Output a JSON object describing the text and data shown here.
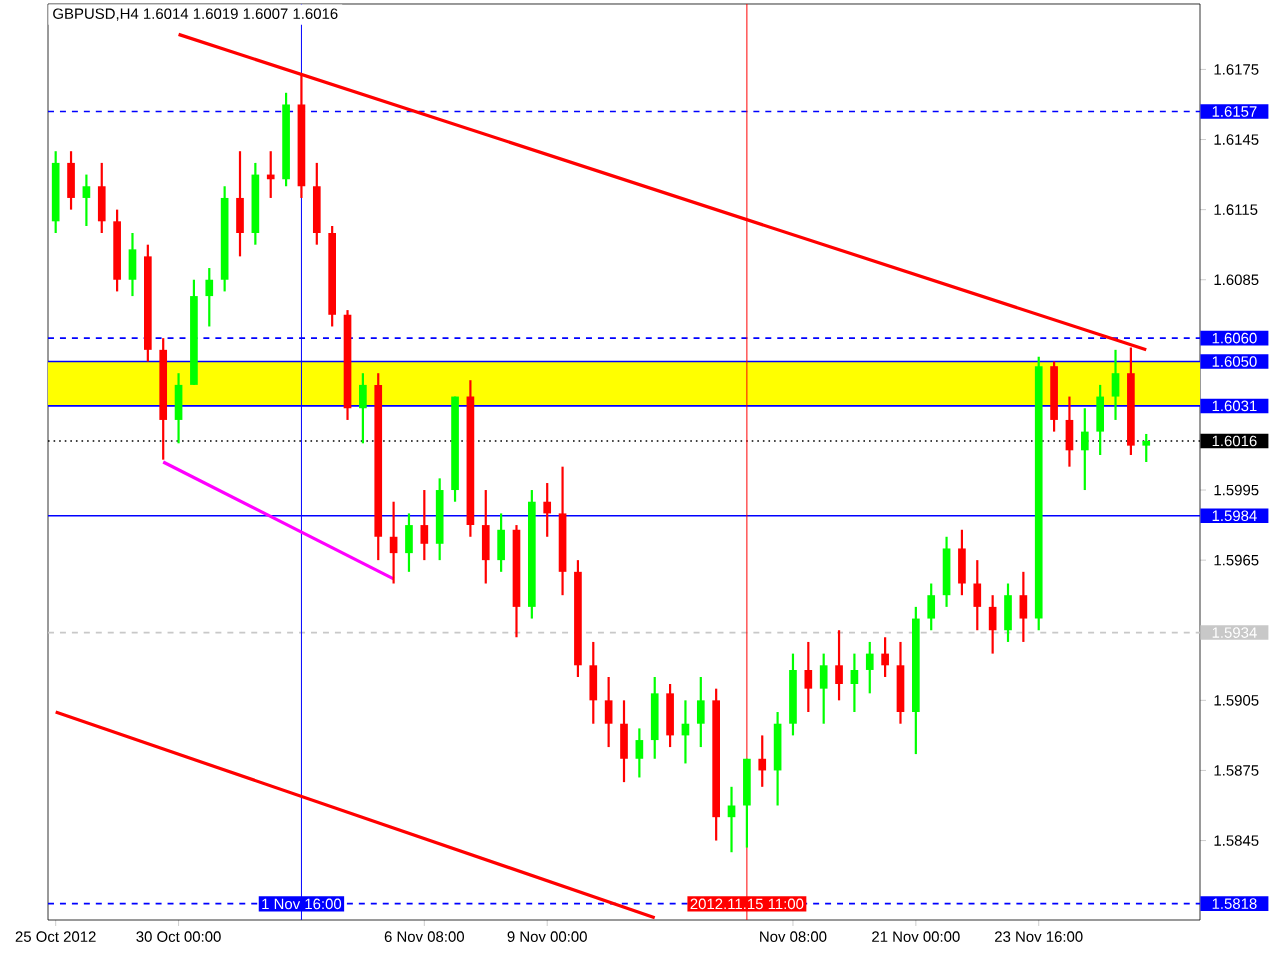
{
  "chart_data": {
    "type": "candlestick",
    "title": "GBPUSD,H4  1.6014 1.6019 1.6007 1.6016",
    "categories": [
      "25 Oct 2012",
      null,
      null,
      null,
      null,
      null,
      null,
      null,
      "30 Oct 00:00",
      null,
      null,
      null,
      null,
      null,
      null,
      null,
      "1 Nov 16:00",
      null,
      null,
      null,
      null,
      null,
      null,
      null,
      "6 Nov 08:00",
      null,
      null,
      null,
      null,
      null,
      null,
      null,
      "9 Nov 00:00",
      null,
      null,
      null,
      null,
      null,
      null,
      null,
      null,
      null,
      null,
      null,
      null,
      "2012.11.15 11:00",
      null,
      null,
      "Nov 08:00",
      null,
      null,
      null,
      null,
      null,
      null,
      null,
      "21 Nov 00:00",
      null,
      null,
      null,
      null,
      null,
      null,
      null,
      "23 Nov 16:00",
      null,
      null,
      null,
      null,
      null,
      null,
      null
    ],
    "ohlc": [
      [
        1.611,
        1.614,
        1.6105,
        1.6135
      ],
      [
        1.6135,
        1.614,
        1.6115,
        1.612
      ],
      [
        1.612,
        1.613,
        1.6108,
        1.6125
      ],
      [
        1.6125,
        1.6135,
        1.6105,
        1.611
      ],
      [
        1.611,
        1.6115,
        1.608,
        1.6085
      ],
      [
        1.6085,
        1.6105,
        1.6078,
        1.6098
      ],
      [
        1.6095,
        1.61,
        1.605,
        1.6055
      ],
      [
        1.6055,
        1.606,
        1.6008,
        1.6025
      ],
      [
        1.6025,
        1.6045,
        1.6015,
        1.604
      ],
      [
        1.604,
        1.6085,
        1.604,
        1.6078
      ],
      [
        1.6078,
        1.609,
        1.6065,
        1.6085
      ],
      [
        1.6085,
        1.6125,
        1.608,
        1.612
      ],
      [
        1.612,
        1.614,
        1.6095,
        1.6105
      ],
      [
        1.6105,
        1.6135,
        1.61,
        1.613
      ],
      [
        1.613,
        1.614,
        1.612,
        1.6128
      ],
      [
        1.6128,
        1.6165,
        1.6125,
        1.616
      ],
      [
        1.616,
        1.6173,
        1.612,
        1.6125
      ],
      [
        1.6125,
        1.6135,
        1.61,
        1.6105
      ],
      [
        1.6105,
        1.6108,
        1.6065,
        1.607
      ],
      [
        1.607,
        1.6072,
        1.6025,
        1.603
      ],
      [
        1.603,
        1.6045,
        1.6015,
        1.604
      ],
      [
        1.604,
        1.6045,
        1.5965,
        1.5975
      ],
      [
        1.5975,
        1.599,
        1.5955,
        1.5968
      ],
      [
        1.5968,
        1.5985,
        1.596,
        1.598
      ],
      [
        1.598,
        1.5995,
        1.5965,
        1.5972
      ],
      [
        1.5972,
        1.6,
        1.5965,
        1.5995
      ],
      [
        1.5995,
        1.6035,
        1.599,
        1.6035
      ],
      [
        1.6035,
        1.6042,
        1.5975,
        1.598
      ],
      [
        1.598,
        1.5995,
        1.5955,
        1.5965
      ],
      [
        1.5965,
        1.5985,
        1.596,
        1.5978
      ],
      [
        1.5978,
        1.598,
        1.5932,
        1.5945
      ],
      [
        1.5945,
        1.5995,
        1.594,
        1.599
      ],
      [
        1.599,
        1.5998,
        1.5975,
        1.5985
      ],
      [
        1.5985,
        1.6005,
        1.595,
        1.596
      ],
      [
        1.596,
        1.5965,
        1.5915,
        1.592
      ],
      [
        1.592,
        1.593,
        1.5895,
        1.5905
      ],
      [
        1.5905,
        1.5915,
        1.5885,
        1.5895
      ],
      [
        1.5895,
        1.5905,
        1.587,
        1.588
      ],
      [
        1.588,
        1.5893,
        1.5872,
        1.5888
      ],
      [
        1.5888,
        1.5915,
        1.588,
        1.5908
      ],
      [
        1.5908,
        1.5912,
        1.5885,
        1.589
      ],
      [
        1.589,
        1.5905,
        1.5878,
        1.5895
      ],
      [
        1.5895,
        1.5915,
        1.5885,
        1.5905
      ],
      [
        1.5905,
        1.591,
        1.5845,
        1.5855
      ],
      [
        1.5855,
        1.5868,
        1.584,
        1.586
      ],
      [
        1.586,
        1.588,
        1.5842,
        1.588
      ],
      [
        1.588,
        1.589,
        1.5868,
        1.5875
      ],
      [
        1.5875,
        1.59,
        1.586,
        1.5895
      ],
      [
        1.5895,
        1.5925,
        1.589,
        1.5918
      ],
      [
        1.5918,
        1.593,
        1.59,
        1.591
      ],
      [
        1.591,
        1.5925,
        1.5895,
        1.592
      ],
      [
        1.592,
        1.5935,
        1.5905,
        1.5912
      ],
      [
        1.5912,
        1.5925,
        1.59,
        1.5918
      ],
      [
        1.5918,
        1.593,
        1.5908,
        1.5925
      ],
      [
        1.5925,
        1.5932,
        1.5915,
        1.592
      ],
      [
        1.592,
        1.593,
        1.5895,
        1.59
      ],
      [
        1.59,
        1.5945,
        1.5882,
        1.594
      ],
      [
        1.594,
        1.5955,
        1.5935,
        1.595
      ],
      [
        1.595,
        1.5975,
        1.5945,
        1.597
      ],
      [
        1.597,
        1.5978,
        1.595,
        1.5955
      ],
      [
        1.5955,
        1.5965,
        1.5935,
        1.5945
      ],
      [
        1.5945,
        1.595,
        1.5925,
        1.5935
      ],
      [
        1.5935,
        1.5955,
        1.593,
        1.595
      ],
      [
        1.595,
        1.596,
        1.593,
        1.594
      ],
      [
        1.594,
        1.6052,
        1.5935,
        1.6048
      ],
      [
        1.6048,
        1.605,
        1.602,
        1.6025
      ],
      [
        1.6025,
        1.6035,
        1.6005,
        1.6012
      ],
      [
        1.6012,
        1.603,
        1.5995,
        1.602
      ],
      [
        1.602,
        1.604,
        1.601,
        1.6035
      ],
      [
        1.6035,
        1.6055,
        1.6025,
        1.6045
      ],
      [
        1.6045,
        1.6056,
        1.601,
        1.6014
      ],
      [
        1.6014,
        1.6019,
        1.6007,
        1.6016
      ]
    ],
    "colors": [
      "#00ff00",
      "#ff0000",
      "#00ff00",
      "#ff0000",
      "#ff0000",
      "#00ff00",
      "#ff0000",
      "#ff0000",
      "#00ff00",
      "#00ff00",
      "#00ff00",
      "#00ff00",
      "#ff0000",
      "#00ff00",
      "#ff0000",
      "#00ff00",
      "#ff0000",
      "#ff0000",
      "#ff0000",
      "#ff0000",
      "#00ff00",
      "#ff0000",
      "#ff0000",
      "#00ff00",
      "#ff0000",
      "#00ff00",
      "#00ff00",
      "#ff0000",
      "#ff0000",
      "#00ff00",
      "#ff0000",
      "#00ff00",
      "#ff0000",
      "#ff0000",
      "#ff0000",
      "#ff0000",
      "#ff0000",
      "#ff0000",
      "#00ff00",
      "#00ff00",
      "#ff0000",
      "#00ff00",
      "#00ff00",
      "#ff0000",
      "#00ff00",
      "#00ff00",
      "#ff0000",
      "#00ff00",
      "#00ff00",
      "#ff0000",
      "#00ff00",
      "#ff0000",
      "#00ff00",
      "#00ff00",
      "#ff0000",
      "#ff0000",
      "#00ff00",
      "#00ff00",
      "#00ff00",
      "#ff0000",
      "#ff0000",
      "#ff0000",
      "#00ff00",
      "#ff0000",
      "#00ff00",
      "#ff0000",
      "#ff0000",
      "#00ff00",
      "#00ff00",
      "#00ff00",
      "#ff0000",
      "#00ff00"
    ],
    "series": [
      {
        "type": "line",
        "color": "#ff0000",
        "values": [
          null,
          null,
          null,
          null,
          null,
          null,
          null,
          null,
          1.619,
          null,
          null,
          null,
          null,
          null,
          null,
          null,
          null,
          null,
          null,
          null,
          null,
          null,
          null,
          null,
          null,
          null,
          null,
          null,
          null,
          null,
          null,
          null,
          null,
          null,
          null,
          null,
          null,
          null,
          null,
          null,
          null,
          null,
          null,
          null,
          null,
          null,
          null,
          null,
          null,
          null,
          null,
          null,
          null,
          null,
          null,
          null,
          null,
          null,
          null,
          null,
          null,
          null,
          null,
          null,
          null,
          null,
          null,
          null,
          null,
          null,
          null,
          1.6055
        ]
      },
      {
        "type": "line",
        "color": "#ff0000",
        "values": [
          1.59,
          null,
          null,
          null,
          null,
          null,
          null,
          null,
          null,
          null,
          null,
          null,
          null,
          null,
          null,
          null,
          null,
          null,
          null,
          null,
          null,
          null,
          null,
          null,
          null,
          null,
          null,
          null,
          null,
          null,
          null,
          null,
          null,
          null,
          null,
          null,
          null,
          null,
          null,
          1.5812,
          null,
          null,
          null,
          null,
          null,
          null,
          null,
          null,
          null,
          null,
          null,
          null,
          null,
          null,
          null,
          null,
          null,
          null,
          null,
          null,
          null,
          null,
          null,
          null,
          null,
          null,
          null,
          null,
          null,
          null,
          null,
          null
        ]
      },
      {
        "type": "line",
        "color": "#ff00ff",
        "values": [
          null,
          null,
          null,
          null,
          null,
          null,
          null,
          1.6007,
          null,
          null,
          null,
          null,
          null,
          null,
          null,
          null,
          null,
          null,
          null,
          null,
          null,
          null,
          1.5957,
          null,
          null,
          null,
          null,
          null,
          null,
          null,
          null,
          null,
          null,
          null,
          null,
          null,
          null,
          null,
          null,
          null,
          null,
          null,
          null,
          null,
          null,
          null,
          null,
          null,
          null,
          null,
          null,
          null,
          null,
          null,
          null,
          null,
          null,
          null,
          null,
          null,
          null,
          null,
          null,
          null,
          null,
          null,
          null,
          null,
          null,
          null,
          null,
          null
        ]
      }
    ],
    "ylim": [
      1.5811,
      1.6203
    ],
    "yticks": [
      1.6175,
      1.6145,
      1.6115,
      1.6085,
      1.5995,
      1.5965,
      1.5905,
      1.5875,
      1.5845
    ],
    "bands": [
      {
        "axis": "y",
        "from": 1.6031,
        "to": 1.605,
        "color": "#ffff00"
      }
    ],
    "ref_lines": [
      {
        "axis": "y",
        "value": 1.6157,
        "label": "1.6157",
        "color": "#0000ff",
        "line_style": "dashed"
      },
      {
        "axis": "y",
        "value": 1.606,
        "label": "1.6060",
        "color": "#0000ff",
        "line_style": "dashed"
      },
      {
        "axis": "y",
        "value": 1.605,
        "label": "1.6050",
        "color": "#0000ff",
        "line_style": "solid"
      },
      {
        "axis": "y",
        "value": 1.6031,
        "label": "1.6031",
        "color": "#0000ff",
        "line_style": "solid"
      },
      {
        "axis": "y",
        "value": 1.6016,
        "label": "1.6016",
        "color": "#000000",
        "line_style": "dotted"
      },
      {
        "axis": "y",
        "value": 1.5984,
        "label": "1.5984",
        "color": "#0000ff",
        "line_style": "solid"
      },
      {
        "axis": "y",
        "value": 1.5934,
        "label": "1.5934",
        "color": "#c8c8c8",
        "line_style": "dashed"
      },
      {
        "axis": "y",
        "value": 1.5818,
        "label": "1.5818",
        "color": "#0000ff",
        "line_style": "dashed"
      },
      {
        "axis": "x",
        "value": "1 Nov 16:00",
        "color": "#0000ff",
        "line_style": "solid"
      },
      {
        "axis": "x",
        "value": "2012.11.15 11:00",
        "color": "#ff0000",
        "line_style": "solid"
      }
    ]
  }
}
